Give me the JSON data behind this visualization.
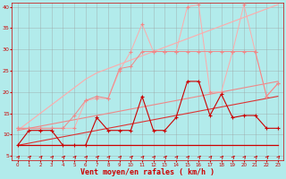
{
  "background_color": "#b2ebeb",
  "grid_color": "#999999",
  "xlabel": "Vent moyen/en rafales ( km/h )",
  "xlabel_color": "#cc0000",
  "xlabel_fontsize": 6,
  "ytick_color": "#cc0000",
  "xtick_color": "#cc0000",
  "xlim": [
    -0.5,
    23.5
  ],
  "ylim": [
    4,
    41
  ],
  "yticks": [
    5,
    10,
    15,
    20,
    25,
    30,
    35,
    40
  ],
  "xticks": [
    0,
    1,
    2,
    3,
    4,
    5,
    6,
    7,
    8,
    9,
    10,
    11,
    12,
    13,
    14,
    15,
    16,
    17,
    18,
    19,
    20,
    21,
    22,
    23
  ],
  "x": [
    0,
    1,
    2,
    3,
    4,
    5,
    6,
    7,
    8,
    9,
    10,
    11,
    12,
    13,
    14,
    15,
    16,
    17,
    18,
    19,
    20,
    21,
    22,
    23
  ],
  "line_dark1": [
    7.5,
    7.5,
    7.5,
    7.5,
    7.5,
    7.5,
    7.5,
    7.5,
    7.5,
    7.5,
    7.5,
    7.5,
    7.5,
    7.5,
    7.5,
    7.5,
    7.5,
    7.5,
    7.5,
    7.5,
    7.5,
    7.5,
    7.5,
    7.5
  ],
  "line_dark2": [
    7.5,
    8.0,
    8.5,
    9.0,
    9.5,
    10.0,
    10.5,
    11.0,
    11.5,
    12.0,
    12.5,
    13.0,
    13.5,
    14.0,
    14.5,
    15.0,
    15.5,
    16.0,
    16.5,
    17.0,
    17.5,
    18.0,
    18.5,
    19.0
  ],
  "line_dark3": [
    11.0,
    11.5,
    12.0,
    12.5,
    13.0,
    13.5,
    14.0,
    14.5,
    15.0,
    15.5,
    16.0,
    16.5,
    17.0,
    17.5,
    18.0,
    18.5,
    19.0,
    19.5,
    20.0,
    20.5,
    21.0,
    21.5,
    22.0,
    22.5
  ],
  "line_med_zigzag": [
    7.5,
    11.0,
    11.0,
    11.0,
    7.5,
    7.5,
    7.5,
    14.0,
    11.0,
    11.0,
    11.0,
    19.0,
    11.0,
    11.0,
    14.0,
    22.5,
    22.5,
    14.5,
    19.5,
    14.0,
    14.5,
    14.5,
    11.5,
    11.5
  ],
  "line_pink1": [
    11.5,
    11.5,
    11.5,
    11.5,
    11.5,
    14.5,
    18.0,
    19.0,
    18.5,
    25.5,
    26.0,
    29.5,
    29.5,
    29.5,
    29.5,
    29.5,
    29.5,
    29.5,
    29.5,
    29.5,
    29.5,
    29.5,
    19.0,
    22.0
  ],
  "line_pink2": [
    11.5,
    11.5,
    11.5,
    11.5,
    11.5,
    11.5,
    18.0,
    18.5,
    18.5,
    25.0,
    29.5,
    36.0,
    29.5,
    29.5,
    29.5,
    40.0,
    40.5,
    20.0,
    20.0,
    29.5,
    40.5,
    29.5,
    19.0,
    22.0
  ],
  "line_pink_smooth": [
    11.0,
    13.0,
    15.0,
    17.0,
    19.0,
    21.0,
    23.0,
    24.5,
    25.5,
    26.5,
    27.5,
    28.5,
    29.5,
    30.5,
    31.5,
    32.5,
    33.5,
    34.5,
    35.5,
    36.5,
    37.5,
    38.5,
    39.5,
    40.5
  ],
  "color_dark_red": "#cc0000",
  "color_med_red": "#dd3333",
  "color_light_pink": "#ee8888",
  "color_very_light_pink": "#ffaaaa",
  "color_pale_pink": "#ffcccc"
}
